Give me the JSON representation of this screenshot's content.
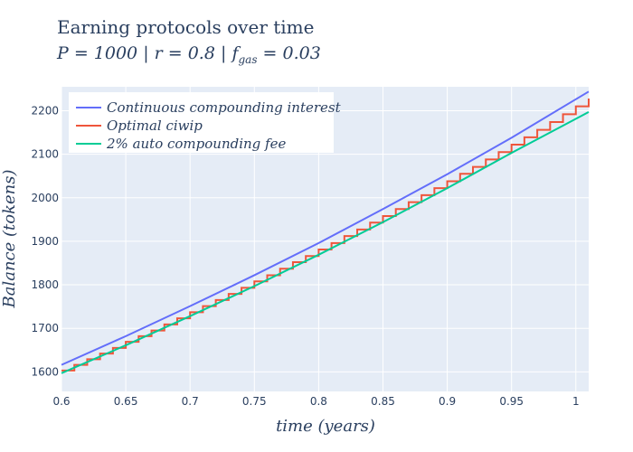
{
  "chart_data": {
    "type": "line",
    "title": "Earning protocols over time",
    "subtitle": "P = 1000 | r = 0.8 | f_gas = 0.03",
    "subtitle_parts": {
      "p": "P = 1000",
      "r": "r = 0.8",
      "f": "f",
      "f_sub": "gas",
      "f_val": "= 0.03",
      "sep": "|"
    },
    "xlabel": "time (years)",
    "ylabel": "Balance (tokens)",
    "xlim": [
      0.6,
      1.01
    ],
    "ylim": [
      1555,
      2255
    ],
    "xticks": [
      0.6,
      0.65,
      0.7,
      0.75,
      0.8,
      0.85,
      0.9,
      0.95,
      1
    ],
    "xtick_labels": [
      "0.6",
      "0.65",
      "0.7",
      "0.75",
      "0.8",
      "0.85",
      "0.9",
      "0.95",
      "1"
    ],
    "yticks": [
      1600,
      1700,
      1800,
      1900,
      2000,
      2100,
      2200
    ],
    "ytick_labels": [
      "1600",
      "1700",
      "1800",
      "1900",
      "2000",
      "2100",
      "2200"
    ],
    "grid": true,
    "legend_position": "top-left",
    "series": [
      {
        "name": "Continuous compounding interest",
        "color": "#636efa",
        "x": [
          0.6,
          0.65,
          0.7,
          0.75,
          0.8,
          0.85,
          0.9,
          0.95,
          1.01
        ],
        "y": [
          1616,
          1682,
          1751,
          1822,
          1896,
          1974,
          2054,
          2138,
          2244
        ]
      },
      {
        "name": "Optimal ciwip",
        "color": "#ef553b",
        "step": true,
        "x": [
          0.6,
          0.61,
          0.62,
          0.63,
          0.64,
          0.65,
          0.66,
          0.67,
          0.68,
          0.69,
          0.7,
          0.71,
          0.72,
          0.73,
          0.74,
          0.75,
          0.76,
          0.77,
          0.78,
          0.79,
          0.8,
          0.81,
          0.82,
          0.83,
          0.84,
          0.85,
          0.86,
          0.87,
          0.88,
          0.89,
          0.9,
          0.91,
          0.92,
          0.93,
          0.94,
          0.95,
          0.96,
          0.97,
          0.98,
          0.99,
          1.0,
          1.01
        ],
        "y": [
          1603,
          1616,
          1629,
          1642,
          1655,
          1669,
          1682,
          1695,
          1709,
          1723,
          1737,
          1751,
          1765,
          1779,
          1793,
          1808,
          1822,
          1837,
          1852,
          1866,
          1881,
          1896,
          1912,
          1927,
          1943,
          1958,
          1974,
          1990,
          2006,
          2022,
          2038,
          2055,
          2071,
          2088,
          2105,
          2122,
          2139,
          2156,
          2174,
          2192,
          2210,
          2228
        ]
      },
      {
        "name": "2% auto compounding fee",
        "color": "#00cc96",
        "x": [
          0.6,
          0.65,
          0.7,
          0.75,
          0.8,
          0.85,
          0.9,
          0.95,
          1.01
        ],
        "y": [
          1597,
          1661,
          1728,
          1797,
          1869,
          1944,
          2022,
          2103,
          2197
        ]
      }
    ]
  }
}
